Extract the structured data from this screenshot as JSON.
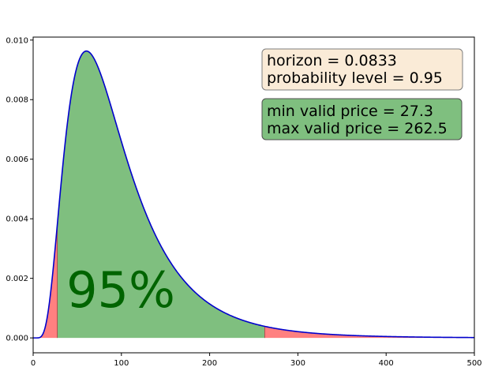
{
  "chart_data": {
    "type": "area",
    "title": "",
    "xlabel": "",
    "ylabel": "",
    "xlim": [
      0,
      500
    ],
    "ylim": [
      -0.0005,
      0.0101
    ],
    "x_ticks": [
      0,
      100,
      200,
      300,
      400,
      500
    ],
    "y_ticks": [
      0.0,
      0.002,
      0.004,
      0.006,
      0.008,
      0.01
    ],
    "x_tick_labels": [
      "0",
      "100",
      "200",
      "300",
      "400",
      "500"
    ],
    "y_tick_labels": [
      "0.000",
      "0.002",
      "0.004",
      "0.006",
      "0.008",
      "0.010"
    ],
    "grid": false,
    "distribution": {
      "type": "lognormal",
      "median": 84.5,
      "sigma": 0.58
    },
    "curve_color": "#0000cc",
    "fill_inside_color": "#7fbf7f",
    "fill_tail_color": "#ff8080",
    "interval": {
      "min": 27.3,
      "max": 262.5
    },
    "annotations": {
      "center_label": "95%",
      "center_label_color": "#006400",
      "info_box": {
        "line1": "horizon = 0.0833",
        "line2": "probability level = 0.95",
        "background": "#faebd7"
      },
      "price_box": {
        "line1": "min valid price  = 27.3",
        "line2": "max valid price = 262.5",
        "background": "#7fbf7f"
      }
    }
  }
}
